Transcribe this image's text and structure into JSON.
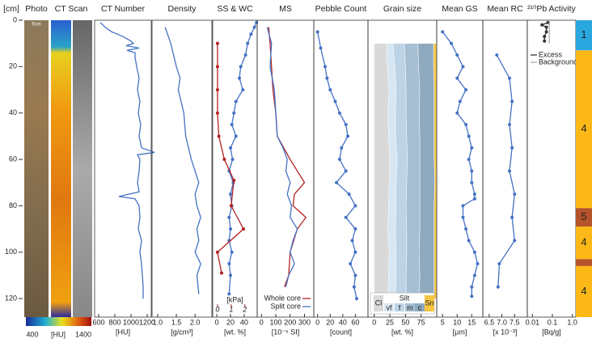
{
  "depth_axis": {
    "label": "[cm]",
    "ylim": [
      0,
      128
    ],
    "yticks": [
      0,
      20,
      40,
      60,
      80,
      100,
      120
    ]
  },
  "image_panels": {
    "titles": [
      "Photo",
      "CT Scan"
    ],
    "scale_label": "5cm",
    "colorbar": {
      "label": "[HU]",
      "ticks": [
        400,
        1400
      ]
    }
  },
  "chart_data": [
    {
      "type": "line",
      "title": "CT Number",
      "xlabel": "[HU]",
      "xlim": [
        550,
        1250
      ],
      "xticks": [
        600,
        800,
        1000,
        1200
      ],
      "series": [
        {
          "color": "#4472c4",
          "markers": false,
          "depth": [
            1,
            3,
            5,
            7,
            9,
            10,
            11,
            12,
            13,
            14,
            16,
            20,
            25,
            30,
            35,
            40,
            45,
            50,
            55,
            57,
            58,
            60,
            65,
            70,
            74,
            76,
            77,
            80,
            85,
            90,
            95,
            100,
            105,
            110,
            115,
            120
          ],
          "values": [
            620,
            680,
            760,
            900,
            1000,
            1030,
            940,
            1100,
            950,
            1050,
            1050,
            1070,
            1100,
            1080,
            1110,
            1090,
            1120,
            1100,
            1130,
            1290,
            1080,
            1110,
            1100,
            1080,
            1100,
            850,
            1050,
            1100,
            1110,
            1090,
            1130,
            1110,
            1130,
            1140,
            1150,
            1150
          ]
        }
      ]
    },
    {
      "type": "line",
      "title": "Density",
      "xlabel": "[g/cm³]",
      "xlim": [
        0.85,
        2.45
      ],
      "xticks": [
        {
          "value": 1,
          "label": "1.0"
        },
        1.5,
        {
          "value": 2,
          "label": "2.0"
        }
      ],
      "series": [
        {
          "color": "#4472c4",
          "markers": false,
          "depth": [
            3,
            10,
            20,
            25,
            30,
            40,
            50,
            60,
            65,
            70,
            75,
            80,
            85,
            90,
            95,
            100,
            105,
            110,
            118
          ],
          "values": [
            1.2,
            1.35,
            1.5,
            1.6,
            1.55,
            1.7,
            1.75,
            1.9,
            2.0,
            2.1,
            2.0,
            2.05,
            2.15,
            2.05,
            2.1,
            2.0,
            2.15,
            2.05,
            2.1
          ]
        }
      ]
    },
    {
      "type": "line",
      "title": "SS & WC",
      "xlabel": "[wt. %]",
      "xlim": [
        -6,
        59
      ],
      "xticks": [
        0,
        20,
        40
      ],
      "x2label": "[kPa]",
      "x2lim": [
        -0.35,
        2.9
      ],
      "x2ticks": [
        0,
        1,
        2
      ],
      "series": [
        {
          "color": "#4472c4",
          "markers": true,
          "depth": [
            1,
            3,
            6,
            10,
            15,
            20,
            25,
            30,
            35,
            40,
            45,
            50,
            55,
            60,
            65,
            70,
            75,
            80,
            85,
            90,
            95,
            100,
            105,
            110,
            118
          ],
          "values": [
            58,
            55,
            50,
            45,
            42,
            35,
            33,
            38,
            28,
            25,
            22,
            28,
            20,
            23,
            18,
            24,
            20,
            22,
            18,
            20,
            18,
            22,
            18,
            20,
            18
          ]
        },
        {
          "color": "#b22222",
          "markers": true,
          "axis": "x2",
          "depth": [
            10,
            20,
            30,
            40,
            50,
            60,
            69,
            80,
            90,
            100,
            109
          ],
          "values": [
            0,
            0,
            0,
            0,
            0.1,
            0.5,
            1.2,
            1.0,
            1.9,
            0,
            0.3
          ]
        }
      ]
    },
    {
      "type": "line",
      "title": "MS",
      "xlabel": "[10⁻⁵ SI]",
      "xlim": [
        -30,
        365
      ],
      "xticks": [
        0,
        100,
        200,
        300
      ],
      "series": [
        {
          "name": "Whole core",
          "color": "#b22222",
          "markers": false,
          "depth": [
            3,
            10,
            20,
            30,
            40,
            50,
            60,
            70,
            75,
            80,
            85,
            90,
            100,
            110,
            115
          ],
          "values": [
            50,
            60,
            70,
            80,
            100,
            110,
            200,
            300,
            230,
            220,
            310,
            250,
            200,
            190,
            160
          ]
        },
        {
          "name": "Split core",
          "color": "#4472c4",
          "markers": false,
          "depth": [
            3,
            10,
            20,
            30,
            40,
            50,
            55,
            60,
            65,
            70,
            75,
            80,
            85,
            90,
            95,
            100,
            105,
            110,
            115
          ],
          "values": [
            40,
            70,
            60,
            90,
            100,
            110,
            150,
            180,
            170,
            200,
            180,
            210,
            200,
            250,
            220,
            200,
            230,
            190,
            170
          ]
        }
      ]
    },
    {
      "type": "line",
      "title": "Pebble Count",
      "xlabel": "[count]",
      "xlim": [
        -6,
        80
      ],
      "xticks": [
        0,
        20,
        40,
        60
      ],
      "series": [
        {
          "color": "#4472c4",
          "markers": true,
          "depth": [
            5,
            12,
            20,
            25,
            30,
            35,
            40,
            45,
            50,
            55,
            60,
            65,
            70,
            75,
            80,
            85,
            90,
            95,
            100,
            105,
            110,
            115,
            120
          ],
          "values": [
            0,
            5,
            12,
            15,
            20,
            28,
            35,
            45,
            48,
            38,
            35,
            45,
            30,
            50,
            60,
            45,
            60,
            55,
            60,
            52,
            60,
            58,
            62
          ]
        }
      ]
    },
    {
      "type": "stacked-area",
      "title": "Grain size",
      "xlabel": "[wt. %]",
      "xlim": [
        -10,
        100
      ],
      "xticks": [
        0,
        25,
        50,
        75
      ],
      "group_label": "Silt",
      "depth": [
        10,
        20,
        30,
        40,
        50,
        60,
        70,
        80,
        90,
        100,
        110,
        120
      ],
      "series": [
        {
          "name": "Cl",
          "color": "#d9d9d9",
          "values": [
            20,
            21,
            24,
            22,
            23,
            25,
            24,
            23,
            22,
            24,
            23,
            22
          ]
        },
        {
          "name": "vf",
          "color": "#d6e6f2",
          "values": [
            10,
            12,
            11,
            12,
            11,
            12,
            11,
            12,
            12,
            11,
            12,
            12
          ]
        },
        {
          "name": "f",
          "color": "#bcd4e6",
          "values": [
            18,
            17,
            16,
            17,
            18,
            16,
            17,
            16,
            18,
            17,
            16,
            17
          ]
        },
        {
          "name": "m",
          "color": "#a7bfd3",
          "values": [
            22,
            21,
            22,
            21,
            21,
            20,
            21,
            22,
            21,
            20,
            22,
            21
          ]
        },
        {
          "name": "c",
          "color": "#8fa9bf",
          "values": [
            25,
            24,
            23,
            24,
            23,
            23,
            24,
            23,
            23,
            24,
            23,
            24
          ]
        },
        {
          "name": "Sn",
          "color": "#f5c542",
          "values": [
            5,
            5,
            4,
            4,
            4,
            4,
            3,
            4,
            4,
            4,
            4,
            4
          ]
        }
      ]
    },
    {
      "type": "line",
      "title": "Mean GS",
      "xlabel": "[µm]",
      "xlim": [
        3,
        18.8
      ],
      "xticks": [
        5,
        10,
        15
      ],
      "series": [
        {
          "color": "#4472c4",
          "markers": true,
          "depth": [
            5,
            10,
            15,
            20,
            25,
            30,
            35,
            40,
            45,
            50,
            55,
            60,
            65,
            70,
            75,
            77,
            80,
            85,
            90,
            95,
            100,
            105,
            110,
            115,
            119
          ],
          "values": [
            5,
            8,
            10,
            12,
            10,
            13,
            11,
            10,
            13,
            14,
            15,
            14,
            15,
            15,
            16,
            16,
            12,
            12,
            13,
            14,
            16,
            17,
            16,
            15,
            15
          ]
        }
      ]
    },
    {
      "type": "line",
      "title": "Mean RC",
      "xlabel": "[x 10⁻³]",
      "xlim": [
        6.25,
        8.0
      ],
      "xticks": [
        6.5,
        {
          "value": 7,
          "label": "7.0"
        },
        7.5
      ],
      "series": [
        {
          "color": "#4472c4",
          "markers": true,
          "depth": [
            15,
            25,
            35,
            45,
            55,
            65,
            75,
            85,
            95,
            105,
            115
          ],
          "values": [
            6.8,
            7.3,
            7.4,
            7.3,
            7.4,
            7.3,
            7.5,
            7.4,
            7.5,
            6.9,
            6.85
          ]
        }
      ]
    },
    {
      "type": "line",
      "title": "²¹⁰Pb Activity",
      "xlabel": "[Bq/g]",
      "xscale": "log",
      "xlim": [
        0.0055,
        1.5
      ],
      "xticks": [
        0.01,
        0.1,
        {
          "value": 1,
          "label": "1.0"
        }
      ],
      "legend": true,
      "series": [
        {
          "name": "Excess",
          "color": "#333333",
          "markers": true,
          "depth": [
            1,
            2,
            3,
            5,
            7,
            9
          ],
          "values": [
            0.06,
            0.03,
            0.05,
            0.05,
            0.04,
            0.04
          ]
        },
        {
          "name": "Background",
          "color": "#aaaaaa",
          "markers": false,
          "depth": [
            0,
            10
          ],
          "values": [
            0.07,
            0.07
          ]
        }
      ]
    },
    {
      "type": "units",
      "categories": [
        "1",
        "4",
        "5",
        "4",
        null,
        "4"
      ],
      "top": [
        0,
        13,
        81,
        89,
        103,
        106
      ],
      "bottom": [
        13,
        81,
        89,
        103,
        106,
        128
      ],
      "colors": [
        "#29a8e0",
        "#fbb817",
        "#b5532a",
        "#fbb817",
        "#b5532a",
        "#fbb817"
      ]
    }
  ]
}
